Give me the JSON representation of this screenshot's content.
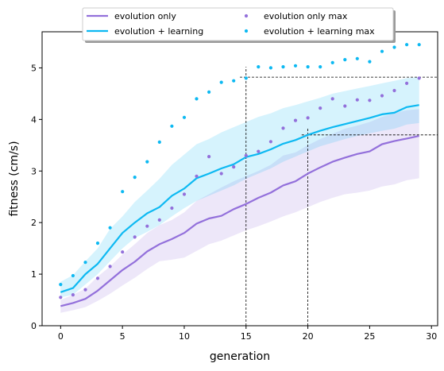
{
  "chart_data": {
    "type": "line",
    "xlabel": "generation",
    "ylabel": "fitness (cm/s)",
    "xlim": [
      -1.5,
      30.5
    ],
    "ylim": [
      0,
      5.7
    ],
    "xticks": [
      0,
      5,
      10,
      15,
      20,
      25,
      30
    ],
    "yticks": [
      0,
      1,
      2,
      3,
      4,
      5
    ],
    "grid": false,
    "legend_position": "top-center",
    "x": [
      0,
      1,
      2,
      3,
      4,
      5,
      6,
      7,
      8,
      9,
      10,
      11,
      12,
      13,
      14,
      15,
      16,
      17,
      18,
      19,
      20,
      21,
      22,
      23,
      24,
      25,
      26,
      27,
      28,
      29
    ],
    "series": [
      {
        "name": "evolution only",
        "kind": "line-with-band",
        "color": "#9370DB",
        "values": [
          0.38,
          0.44,
          0.52,
          0.68,
          0.88,
          1.08,
          1.24,
          1.44,
          1.58,
          1.68,
          1.8,
          1.98,
          2.08,
          2.13,
          2.26,
          2.36,
          2.48,
          2.58,
          2.72,
          2.8,
          2.95,
          3.07,
          3.18,
          3.26,
          3.33,
          3.38,
          3.52,
          3.58,
          3.63,
          3.68
        ],
        "band_lower": [
          0.25,
          0.3,
          0.36,
          0.48,
          0.62,
          0.78,
          0.93,
          1.1,
          1.25,
          1.28,
          1.32,
          1.45,
          1.58,
          1.65,
          1.75,
          1.85,
          1.93,
          2.02,
          2.12,
          2.2,
          2.3,
          2.4,
          2.48,
          2.55,
          2.58,
          2.62,
          2.7,
          2.74,
          2.82,
          2.86
        ],
        "band_upper": [
          0.5,
          0.6,
          0.72,
          0.95,
          1.15,
          1.38,
          1.58,
          1.8,
          1.95,
          2.05,
          2.2,
          2.42,
          2.55,
          2.68,
          2.8,
          2.9,
          3.0,
          3.12,
          3.3,
          3.36,
          3.5,
          3.62,
          3.72,
          3.82,
          3.88,
          3.95,
          4.05,
          4.12,
          4.18,
          4.2
        ]
      },
      {
        "name": "evolution + learning",
        "kind": "line-with-band",
        "color": "#0DB9F2",
        "values": [
          0.65,
          0.73,
          1.0,
          1.2,
          1.5,
          1.8,
          2.0,
          2.18,
          2.3,
          2.52,
          2.66,
          2.86,
          2.95,
          3.05,
          3.13,
          3.27,
          3.33,
          3.42,
          3.53,
          3.6,
          3.7,
          3.78,
          3.85,
          3.91,
          3.97,
          4.03,
          4.1,
          4.13,
          4.24,
          4.28
        ],
        "band_lower": [
          0.55,
          0.6,
          0.8,
          1.0,
          1.25,
          1.5,
          1.7,
          1.82,
          1.95,
          2.12,
          2.28,
          2.42,
          2.52,
          2.62,
          2.72,
          2.85,
          2.95,
          3.05,
          3.18,
          3.28,
          3.38,
          3.48,
          3.55,
          3.62,
          3.68,
          3.73,
          3.78,
          3.82,
          3.9,
          3.93
        ],
        "band_upper": [
          0.85,
          0.98,
          1.25,
          1.5,
          1.88,
          2.12,
          2.4,
          2.62,
          2.85,
          3.12,
          3.32,
          3.52,
          3.62,
          3.75,
          3.85,
          3.95,
          4.05,
          4.12,
          4.22,
          4.28,
          4.35,
          4.42,
          4.5,
          4.55,
          4.6,
          4.65,
          4.7,
          4.75,
          4.8,
          4.82
        ]
      },
      {
        "name": "evolution only max",
        "kind": "scatter",
        "color": "#9370DB",
        "values": [
          0.55,
          0.6,
          0.7,
          0.92,
          1.15,
          1.43,
          1.72,
          1.93,
          2.05,
          2.28,
          2.55,
          2.9,
          3.28,
          2.95,
          3.08,
          3.3,
          3.38,
          3.57,
          3.83,
          3.98,
          4.03,
          4.22,
          4.4,
          4.26,
          4.38,
          4.37,
          4.46,
          4.56,
          4.7,
          4.8
        ]
      },
      {
        "name": "evolution + learning max",
        "kind": "scatter",
        "color": "#0DB9F2",
        "values": [
          0.8,
          0.97,
          1.23,
          1.6,
          1.9,
          2.6,
          2.88,
          3.18,
          3.56,
          3.87,
          4.04,
          4.4,
          4.53,
          4.72,
          4.75,
          4.8,
          5.02,
          5.0,
          5.02,
          5.04,
          5.02,
          5.02,
          5.1,
          5.16,
          5.18,
          5.12,
          5.32,
          5.4,
          5.45,
          5.45
        ]
      }
    ],
    "reference_lines": [
      {
        "kind": "vertical",
        "x": 15,
        "y_to": 5.02
      },
      {
        "kind": "vertical",
        "x": 20,
        "y_to": 3.82
      },
      {
        "kind": "horizontal",
        "y": 4.82,
        "x_from": 14.5,
        "x_to": 30.5
      },
      {
        "kind": "horizontal",
        "y": 3.7,
        "x_from": 19.5,
        "x_to": 30.5
      }
    ]
  }
}
